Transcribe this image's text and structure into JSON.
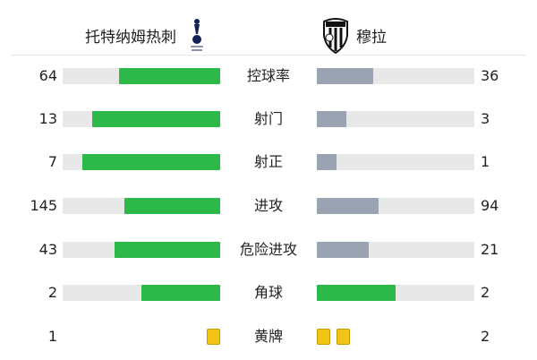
{
  "home": {
    "name": "托特纳姆热刺",
    "crest": "tottenham-crest"
  },
  "away": {
    "name": "穆拉",
    "crest": "ns-mura-crest",
    "crest_text": "NŠ MURA"
  },
  "colors": {
    "leader": "#2db84a",
    "trailer": "#9aa3b1",
    "track": "#e8e8e8",
    "card": "#f3c316"
  },
  "stats": [
    {
      "label": "控球率",
      "home": 64,
      "away": 36
    },
    {
      "label": "射门",
      "home": 13,
      "away": 3
    },
    {
      "label": "射正",
      "home": 7,
      "away": 1
    },
    {
      "label": "进攻",
      "home": 145,
      "away": 94
    },
    {
      "label": "危险进攻",
      "home": 43,
      "away": 21
    },
    {
      "label": "角球",
      "home": 2,
      "away": 2
    }
  ],
  "cards": {
    "label": "黄牌",
    "home": 1,
    "away": 2
  }
}
